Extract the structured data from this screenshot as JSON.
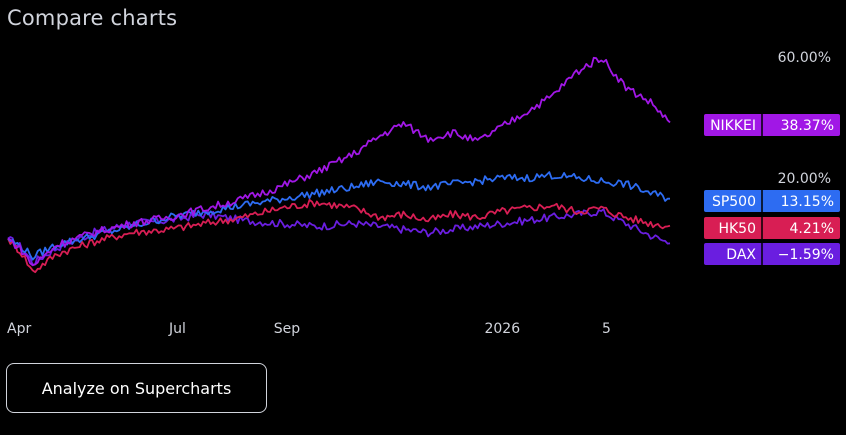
{
  "header": {
    "title": "Compare charts"
  },
  "cta": {
    "label": "Analyze on Supercharts"
  },
  "colors": {
    "background": "#000000",
    "text": "#d1d4dc",
    "NIKKEI": "#a117e6",
    "SP500": "#2d6cf2",
    "HK50": "#d81e54",
    "DAX": "#6a1ee0"
  },
  "chart_data": {
    "type": "line",
    "title": "",
    "xlabel": "",
    "ylabel": "",
    "x_ticks": [
      "Apr",
      "Jul",
      "Sep",
      "2026",
      "5"
    ],
    "x_tick_dates": [
      "2025-04-01",
      "2025-07-01",
      "2025-09-01",
      "2026-01-01",
      "2026-03-01"
    ],
    "y_ticks": [
      "60.00%",
      "20.00%"
    ],
    "y_tick_values": [
      60,
      20
    ],
    "ylim": [
      -11,
      65
    ],
    "grid": false,
    "legend": "right-edge value labels",
    "series": [
      {
        "name": "NIKKEI",
        "last_label": "38.37%",
        "last_value": 38.37,
        "x": [
          "2025-03-27",
          "2025-04-04",
          "2025-04-10",
          "2025-04-24",
          "2025-05-15",
          "2025-06-05",
          "2025-06-26",
          "2025-07-17",
          "2025-08-07",
          "2025-08-28",
          "2025-09-18",
          "2025-10-09",
          "2025-10-24",
          "2025-11-06",
          "2025-11-20",
          "2025-12-04",
          "2025-12-18",
          "2026-01-01",
          "2026-01-15",
          "2026-01-29",
          "2026-02-12",
          "2026-02-26",
          "2026-03-12",
          "2026-03-26",
          "2026-04-06"
        ],
        "values": [
          0,
          -4,
          -9,
          -2,
          2,
          5,
          7,
          10,
          13,
          17,
          22,
          28,
          34,
          38,
          33,
          35,
          32,
          37,
          42,
          47,
          55,
          60,
          50,
          45,
          38.37
        ]
      },
      {
        "name": "SP500",
        "last_label": "13.15%",
        "last_value": 13.15,
        "x": [
          "2025-03-27",
          "2025-04-04",
          "2025-04-10",
          "2025-04-24",
          "2025-05-15",
          "2025-06-05",
          "2025-06-26",
          "2025-07-17",
          "2025-08-07",
          "2025-08-28",
          "2025-09-18",
          "2025-10-09",
          "2025-10-24",
          "2025-11-06",
          "2025-11-20",
          "2025-12-04",
          "2025-12-18",
          "2026-01-01",
          "2026-01-15",
          "2026-01-29",
          "2026-02-12",
          "2026-02-26",
          "2026-03-12",
          "2026-03-26",
          "2026-04-06"
        ],
        "values": [
          0,
          -3,
          -6,
          -2,
          1,
          4,
          7,
          9,
          11,
          13,
          15,
          17,
          19,
          18,
          17,
          18,
          19,
          20,
          20,
          21,
          20,
          19,
          18,
          15,
          13.15
        ]
      },
      {
        "name": "HK50",
        "last_label": "4.21%",
        "last_value": 4.21,
        "x": [
          "2025-03-27",
          "2025-04-04",
          "2025-04-10",
          "2025-04-24",
          "2025-05-15",
          "2025-06-05",
          "2025-06-26",
          "2025-07-17",
          "2025-08-07",
          "2025-08-28",
          "2025-09-18",
          "2025-10-09",
          "2025-10-24",
          "2025-11-06",
          "2025-11-20",
          "2025-12-04",
          "2025-12-18",
          "2026-01-01",
          "2026-01-15",
          "2026-01-29",
          "2026-02-12",
          "2026-02-26",
          "2026-03-12",
          "2026-03-26",
          "2026-04-06"
        ],
        "values": [
          0,
          -5,
          -11,
          -5,
          -1,
          2,
          3,
          5,
          7,
          10,
          12,
          10,
          7,
          8,
          6,
          8,
          7,
          9,
          10,
          11,
          9,
          10,
          7,
          5,
          4.21
        ]
      },
      {
        "name": "DAX",
        "last_label": "−1.59%",
        "last_value": -1.59,
        "x": [
          "2025-03-27",
          "2025-04-04",
          "2025-04-10",
          "2025-04-24",
          "2025-05-15",
          "2025-06-05",
          "2025-06-26",
          "2025-07-17",
          "2025-08-07",
          "2025-08-28",
          "2025-09-18",
          "2025-10-09",
          "2025-10-24",
          "2025-11-06",
          "2025-11-20",
          "2025-12-04",
          "2025-12-18",
          "2026-01-01",
          "2026-01-15",
          "2026-01-29",
          "2026-02-12",
          "2026-02-26",
          "2026-03-12",
          "2026-03-26",
          "2026-04-06"
        ],
        "values": [
          0,
          -3,
          -8,
          -3,
          2,
          5,
          6,
          8,
          6,
          5,
          4,
          5,
          4,
          3,
          2,
          3,
          4,
          5,
          6,
          7,
          8,
          9,
          5,
          1,
          -1.59
        ]
      }
    ]
  }
}
